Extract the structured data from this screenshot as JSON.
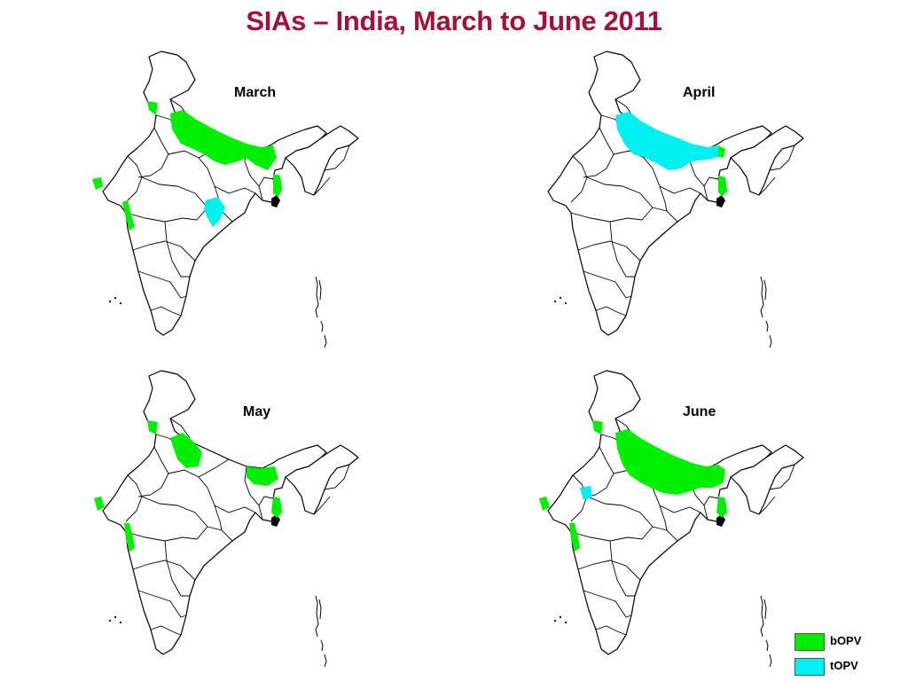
{
  "title": "SIAs – India, March to June 2011",
  "colors": {
    "bopv": "#00ee00",
    "topv": "#00f0f0",
    "title": "#a50f3c"
  },
  "panels": [
    {
      "label": "March"
    },
    {
      "label": "April"
    },
    {
      "label": "May"
    },
    {
      "label": "June"
    }
  ],
  "legend": [
    {
      "label": "bOPV",
      "color": "#00ee00"
    },
    {
      "label": "tOPV",
      "color": "#00f0f0"
    }
  ]
}
